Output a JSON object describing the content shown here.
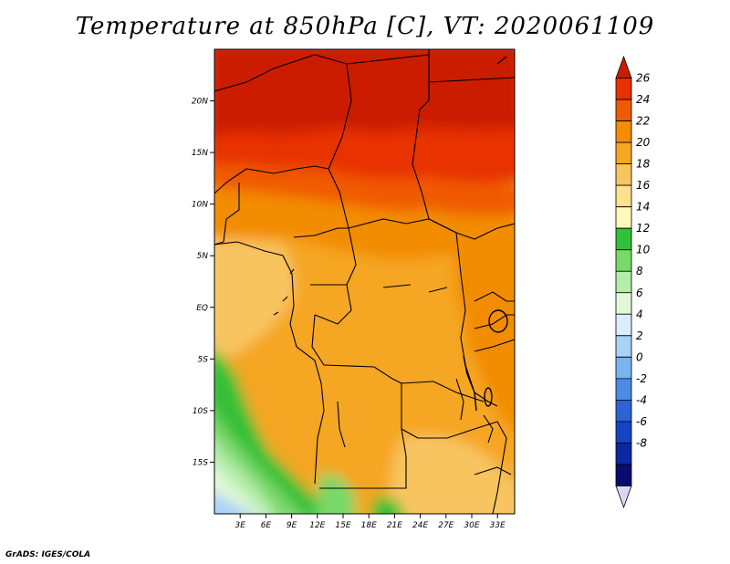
{
  "title": "Temperature at 850hPa [C], VT: 2020061109",
  "credit": "GrADS: IGES/COLA",
  "map": {
    "variable": "Temperature at 850hPa",
    "units": "C",
    "valid_time": "2020061109",
    "lon_range": [
      0,
      35
    ],
    "lat_range": [
      -20,
      25
    ],
    "lat_labels": [
      {
        "lat": 20,
        "label": "20N"
      },
      {
        "lat": 15,
        "label": "15N"
      },
      {
        "lat": 10,
        "label": "10N"
      },
      {
        "lat": 5,
        "label": "5N"
      },
      {
        "lat": 0,
        "label": "EQ"
      },
      {
        "lat": -5,
        "label": "5S"
      },
      {
        "lat": -10,
        "label": "10S"
      },
      {
        "lat": -15,
        "label": "15S"
      }
    ],
    "lon_labels": [
      {
        "lon": 3,
        "label": "3E"
      },
      {
        "lon": 6,
        "label": "6E"
      },
      {
        "lon": 9,
        "label": "9E"
      },
      {
        "lon": 12,
        "label": "12E"
      },
      {
        "lon": 15,
        "label": "15E"
      },
      {
        "lon": 18,
        "label": "18E"
      },
      {
        "lon": 21,
        "label": "21E"
      },
      {
        "lon": 24,
        "label": "24E"
      },
      {
        "lon": 27,
        "label": "27E"
      },
      {
        "lon": 30,
        "label": "30E"
      },
      {
        "lon": 33,
        "label": "33E"
      }
    ]
  },
  "colorbar": {
    "labels": [
      "26",
      "24",
      "22",
      "20",
      "18",
      "16",
      "14",
      "12",
      "10",
      "8",
      "6",
      "4",
      "2",
      "0",
      "-2",
      "-4",
      "-6",
      "-8"
    ],
    "colors": [
      "#cc1c00",
      "#e83000",
      "#f05a00",
      "#f28c00",
      "#f5a623",
      "#f8c460",
      "#fce18e",
      "#fff8b8",
      "#34c038",
      "#78d868",
      "#b4ecaa",
      "#e0f8d8",
      "#d8eefa",
      "#a8d2f6",
      "#78b4f0",
      "#4c8ce4",
      "#2c64d8",
      "#1444c4",
      "#0c28a0",
      "#080c6c",
      "#d8d8f4"
    ]
  }
}
